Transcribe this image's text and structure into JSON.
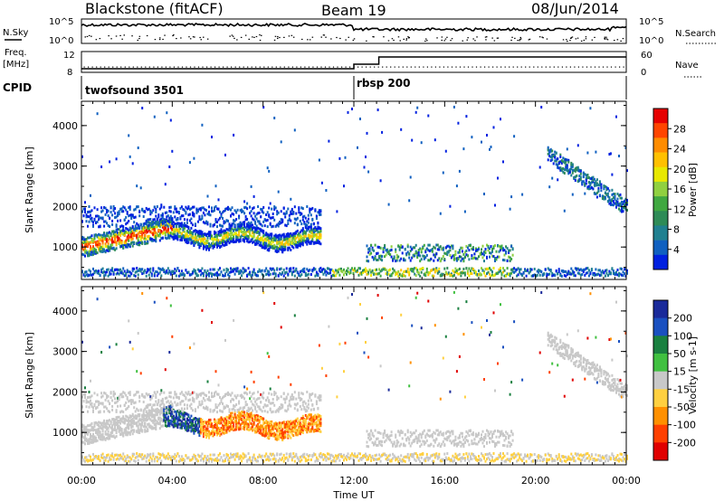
{
  "header": {
    "radar_title": "Blackstone (fitACF)",
    "beam": "Beam 19",
    "date": "08/Jun/2014"
  },
  "panels": {
    "nsky_label": "N.Sky",
    "nsky_ticks": [
      "10^5",
      "10^0"
    ],
    "nsky_right_ticks": [
      "10^5",
      "10^0"
    ],
    "nsearch_label": "N.Search",
    "freq_label_line1": "Freq.",
    "freq_label_line2": "[MHz]",
    "freq_ticks": [
      "12",
      "8"
    ],
    "nave_ticks": [
      "60",
      "0"
    ],
    "nave_label": "Nave",
    "cpid_label": "CPID",
    "cpid_segments": [
      {
        "start_hour": 0,
        "label": "twofsound 3501"
      },
      {
        "start_hour": 12,
        "label": "rbsp 200"
      }
    ]
  },
  "chart_data": [
    {
      "type": "heatmap",
      "name": "power-panel",
      "ylabel": "Slant Range [km]",
      "ylim": [
        200,
        4600
      ],
      "yticks": [
        1000,
        2000,
        3000,
        4000
      ],
      "xlim": [
        0,
        24
      ],
      "colorbar": {
        "label": "Power [dB]",
        "ticks": [
          "28",
          "24",
          "20",
          "16",
          "12",
          "8",
          "4"
        ],
        "colors": [
          "#e60000",
          "#ff4500",
          "#ff8c00",
          "#ffc000",
          "#e8e800",
          "#90d040",
          "#40a840",
          "#2e8b57",
          "#208090",
          "#1060c0",
          "#0020e0"
        ]
      }
    },
    {
      "type": "heatmap",
      "name": "velocity-panel",
      "ylabel": "Slant Range [km]",
      "ylim": [
        200,
        4600
      ],
      "yticks": [
        1000,
        2000,
        3000,
        4000
      ],
      "xlim": [
        0,
        24
      ],
      "xticks": [
        "00:00",
        "04:00",
        "08:00",
        "12:00",
        "16:00",
        "20:00",
        "00:00"
      ],
      "xlabel": "Time UT",
      "colorbar": {
        "label": "Velocity [m s-1]",
        "ticks": [
          "200",
          "100",
          "50",
          "15",
          "-15",
          "-50",
          "-100",
          "-200"
        ],
        "colors": [
          "#1a2a9a",
          "#1a50c0",
          "#1a8040",
          "#40c040",
          "#c8c8c8",
          "#ffd040",
          "#ff9000",
          "#ff4000",
          "#e00000"
        ]
      }
    }
  ]
}
